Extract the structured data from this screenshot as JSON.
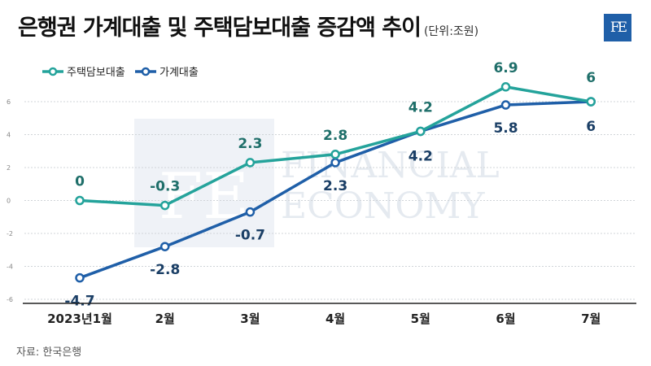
{
  "header": {
    "title": "은행권 가계대출 및 주택담보대출 증감액 추이",
    "unit": "(단위:조원)",
    "logo_text": "FE"
  },
  "watermark": {
    "logo_text": "FE",
    "line1": "FINANCIAL",
    "line2": "ECONOMY"
  },
  "footer": {
    "source": "자료: 한국은행"
  },
  "colors": {
    "mortgage": "#24a39b",
    "household": "#1f5fa8",
    "grid": "#d0d4d8"
  },
  "chart_data": {
    "type": "line",
    "categories": [
      "2023년1월",
      "2월",
      "3월",
      "4월",
      "5월",
      "6월",
      "7월"
    ],
    "series": [
      {
        "name": "주택담보대출",
        "values": [
          0,
          -0.3,
          2.3,
          2.8,
          4.2,
          6.9,
          6
        ],
        "color": "#24a39b"
      },
      {
        "name": "가계대출",
        "values": [
          -4.7,
          -2.8,
          -0.7,
          2.3,
          4.2,
          5.8,
          6
        ],
        "color": "#1f5fa8"
      }
    ],
    "y_ticks": [
      6,
      4,
      2,
      0,
      -2,
      -4,
      -6
    ],
    "ylim": [
      -6,
      6
    ],
    "grid": "horizontal",
    "legend": "top-left"
  }
}
